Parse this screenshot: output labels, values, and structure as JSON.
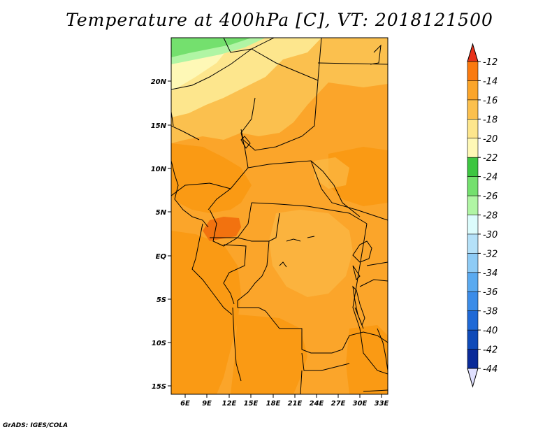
{
  "title": "Temperature at 400hPa [C], VT: 2018121500",
  "credit": "GrADS: IGES/COLA",
  "map": {
    "variable": "Temperature",
    "level": "400hPa",
    "units": "C",
    "valid_time": "2018121500",
    "lat_labels": [
      "20N",
      "15N",
      "10N",
      "5N",
      "EQ",
      "5S",
      "10S",
      "15S"
    ],
    "lon_labels": [
      "6E",
      "9E",
      "12E",
      "15E",
      "18E",
      "21E",
      "24E",
      "27E",
      "30E",
      "33E"
    ]
  },
  "colorbar": {
    "labels": [
      "-12",
      "-14",
      "-16",
      "-18",
      "-20",
      "-22",
      "-24",
      "-26",
      "-28",
      "-30",
      "-32",
      "-34",
      "-36",
      "-38",
      "-40",
      "-42",
      "-44"
    ],
    "colors": [
      "#e8321b",
      "#fa7a0f",
      "#fba52a",
      "#fbc04e",
      "#fde68d",
      "#fef8b6",
      "#3dc641",
      "#74e06e",
      "#b0f5a4",
      "#dcfcfc",
      "#b5e1f8",
      "#8ecbf5",
      "#5aaaf0",
      "#3b8ce8",
      "#1f69d6",
      "#0f4ab8",
      "#0a2a98",
      "#10106e"
    ],
    "top_arrow_color": "#e8321b",
    "bottom_arrow_color": "#e0e0ff"
  },
  "colors": {
    "warm_min": "#fde68d",
    "warm_a": "#fbc04e",
    "warm_b": "#fba52a",
    "warm_c": "#fa9a14",
    "warm_d": "#f2720f",
    "green_a": "#74e06e",
    "green_b": "#b0f5a4"
  }
}
